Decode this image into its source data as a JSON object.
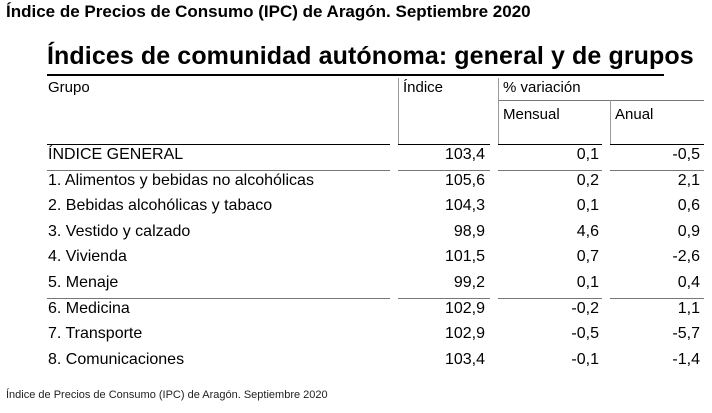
{
  "title": "Índice de Precios de Consumo (IPC) de Aragón. Septiembre 2020",
  "table": {
    "heading": "Índices de comunidad autónoma: general y de grupos",
    "columns": {
      "grupo": "Grupo",
      "indice": "Índice",
      "variacion": "% variación",
      "mensual": "Mensual",
      "anual": "Anual"
    },
    "rows": [
      {
        "label": "ÍNDICE GENERAL",
        "indice": "103,4",
        "mensual": "0,1",
        "anual": "-0,5"
      },
      {
        "label": "1. Alimentos y bebidas no alcohólicas",
        "indice": "105,6",
        "mensual": "0,2",
        "anual": "2,1"
      },
      {
        "label": "2. Bebidas alcohólicas y tabaco",
        "indice": "104,3",
        "mensual": "0,1",
        "anual": "0,6"
      },
      {
        "label": "3. Vestido y calzado",
        "indice": "98,9",
        "mensual": "4,6",
        "anual": "0,9"
      },
      {
        "label": "4. Vivienda",
        "indice": "101,5",
        "mensual": "0,7",
        "anual": "-2,6"
      },
      {
        "label": "5. Menaje",
        "indice": "99,2",
        "mensual": "0,1",
        "anual": "0,4"
      },
      {
        "label": "6. Medicina",
        "indice": "102,9",
        "mensual": "-0,2",
        "anual": "1,1"
      },
      {
        "label": "7. Transporte",
        "indice": "102,9",
        "mensual": "-0,5",
        "anual": "-5,7"
      },
      {
        "label": "8. Comunicaciones",
        "indice": "103,4",
        "mensual": "-0,1",
        "anual": "-1,4"
      }
    ]
  },
  "caption": "Índice de Precios de Consumo (IPC) de Aragón. Septiembre 2020"
}
